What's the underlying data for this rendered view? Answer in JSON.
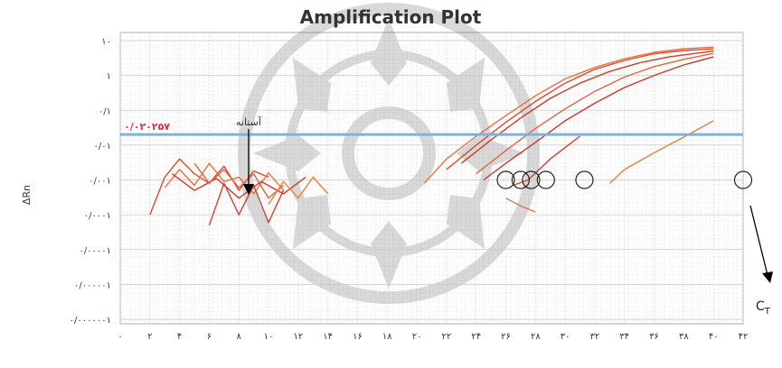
{
  "chart_data": {
    "type": "line",
    "title": "Amplification Plot",
    "ylabel": "ΔRn",
    "xlabel": "",
    "yscale": "log",
    "ylim": [
      1e-07,
      10
    ],
    "xlim": [
      0,
      42
    ],
    "grid": true,
    "x_tick_labels": [
      "۰",
      "۲",
      "۴",
      "۶",
      "۸",
      "۱۰",
      "۱۲",
      "۱۴",
      "۱۶",
      "۱۸",
      "۲۰",
      "۲۲",
      "۲۴",
      "۲۶",
      "۲۸",
      "۳۰",
      "۳۲",
      "۳۴",
      "۳۶",
      "۳۸",
      "۴۰",
      "۴۲"
    ],
    "y_tick_labels": [
      "۱۰",
      "۱",
      "۰/۱",
      "۰/۰۱",
      "۰/۰۰۱",
      "۰/۰۰۰۱",
      "۰/۰۰۰۰۱",
      "۰/۰۰۰۰۰۱",
      "۰/۰۰۰۰۰۰۱"
    ],
    "threshold": {
      "value": 0.0202,
      "label": "۰/۰۲۰۲۵۷"
    },
    "threshold_annotation": "آستانه",
    "ct_label": "C",
    "ct_subscript": "T",
    "ct_markers_x": [
      26,
      27,
      27.7,
      28.7,
      31.3,
      42
    ],
    "ct_markers_y": 0.001,
    "series": [
      {
        "x": [
          20.5,
          22,
          24,
          26,
          28,
          30,
          32,
          34,
          36,
          38,
          40
        ],
        "y": [
          0.0008,
          0.004,
          0.018,
          0.07,
          0.26,
          0.8,
          1.7,
          3.0,
          4.6,
          5.8,
          6.5
        ],
        "color": "#e8703a"
      },
      {
        "x": [
          22,
          24,
          26,
          28,
          30,
          32,
          34,
          36,
          38,
          40
        ],
        "y": [
          0.002,
          0.01,
          0.045,
          0.18,
          0.6,
          1.5,
          2.7,
          4.2,
          5.2,
          5.8
        ],
        "color": "#d84a30"
      },
      {
        "x": [
          23,
          25,
          27,
          29,
          31,
          33,
          35,
          37,
          40
        ],
        "y": [
          0.003,
          0.014,
          0.06,
          0.22,
          0.6,
          1.3,
          2.3,
          3.4,
          5.0
        ],
        "color": "#cc3b2a"
      },
      {
        "x": [
          24,
          26,
          28,
          30,
          32,
          34,
          36,
          38,
          40
        ],
        "y": [
          0.0015,
          0.007,
          0.03,
          0.11,
          0.35,
          0.9,
          1.8,
          2.9,
          4.3
        ],
        "color": "#e06440"
      },
      {
        "x": [
          24.5,
          26,
          28,
          30,
          32,
          34,
          36,
          38,
          40
        ],
        "y": [
          0.001,
          0.003,
          0.012,
          0.05,
          0.16,
          0.45,
          1.0,
          2.0,
          3.4
        ],
        "color": "#c8362a"
      },
      {
        "x": [
          26.5,
          27.5,
          29,
          31
        ],
        "y": [
          0.0007,
          0.001,
          0.004,
          0.018
        ],
        "color": "#d04030"
      },
      {
        "x": [
          26,
          27,
          28
        ],
        "y": [
          0.0003,
          0.00018,
          0.00012
        ],
        "color": "#e07a50"
      },
      {
        "x": [
          33,
          34,
          36,
          38,
          40
        ],
        "y": [
          0.0008,
          0.002,
          0.006,
          0.017,
          0.05
        ],
        "color": "#e8803a"
      },
      {
        "x": [
          2,
          3,
          4,
          5,
          6,
          7,
          8,
          9,
          10
        ],
        "y": [
          0.0001,
          0.0012,
          0.004,
          0.0015,
          0.0008,
          0.0025,
          0.0005,
          0.0018,
          0.0012
        ],
        "color": "#d84a30"
      },
      {
        "x": [
          3,
          4,
          5,
          6,
          7,
          8,
          9,
          10,
          11
        ],
        "y": [
          0.0006,
          0.002,
          0.0007,
          0.003,
          0.0009,
          0.0012,
          0.0004,
          0.0016,
          0.0005
        ],
        "color": "#e8703a"
      },
      {
        "x": [
          3.5,
          5,
          6.5,
          8,
          9.5,
          11,
          12.5
        ],
        "y": [
          0.0015,
          0.0005,
          0.0011,
          0.0003,
          0.0009,
          0.0004,
          0.0012
        ],
        "color": "#cc3b2a"
      },
      {
        "x": [
          5,
          6,
          7,
          8,
          9,
          10,
          11
        ],
        "y": [
          0.003,
          0.0008,
          0.002,
          0.0006,
          0.0015,
          0.0003,
          0.0007
        ],
        "color": "#e06440"
      },
      {
        "x": [
          6,
          7,
          8,
          9,
          10,
          11
        ],
        "y": [
          5e-05,
          0.0008,
          0.0001,
          0.0007,
          6e-05,
          0.0005
        ],
        "color": "#d04030"
      },
      {
        "x": [
          10,
          11,
          12,
          13,
          14
        ],
        "y": [
          0.0002,
          0.0009,
          0.0003,
          0.0012,
          0.0004
        ],
        "color": "#e8803a"
      }
    ]
  }
}
